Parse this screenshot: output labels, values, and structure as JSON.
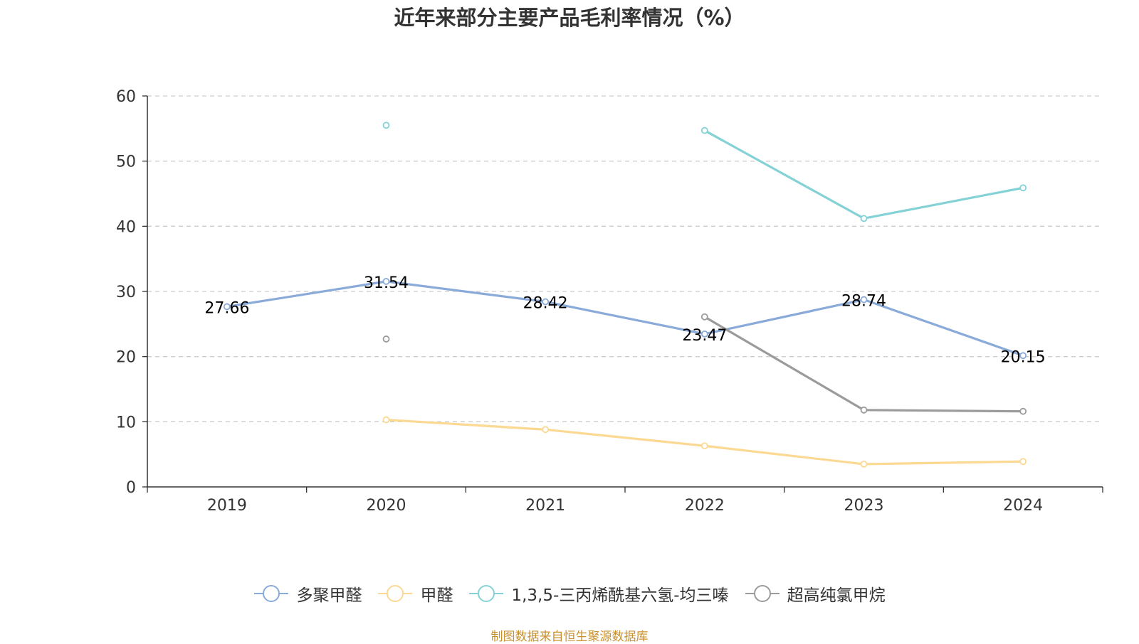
{
  "chart_data": {
    "type": "line",
    "title": "近年来部分主要产品毛利率情况（%）",
    "categories": [
      "2019",
      "2020",
      "2021",
      "2022",
      "2023",
      "2024"
    ],
    "ylim": [
      0,
      60
    ],
    "yticks": [
      0,
      10,
      20,
      30,
      40,
      50,
      60
    ],
    "grid": true,
    "legend_position": "bottom",
    "series": [
      {
        "name": "多聚甲醛",
        "color": "#8aabd9",
        "values": [
          27.66,
          31.54,
          28.42,
          23.47,
          28.74,
          20.15
        ],
        "show_labels": true
      },
      {
        "name": "甲醛",
        "color": "#fcd993",
        "values": [
          null,
          10.3,
          8.8,
          6.3,
          3.5,
          3.9
        ],
        "show_labels": false
      },
      {
        "name": "1,3,5-三丙烯酰基六氢-均三嗪",
        "color": "#84d2d5",
        "values": [
          null,
          55.5,
          null,
          54.7,
          41.2,
          45.9
        ],
        "show_labels": false
      },
      {
        "name": "超高纯氯甲烷",
        "color": "#9b9b9b",
        "values": [
          null,
          22.7,
          null,
          26.1,
          11.8,
          11.6
        ],
        "show_labels": false
      }
    ]
  },
  "footer": {
    "source": "制图数据来自恒生聚源数据库"
  }
}
